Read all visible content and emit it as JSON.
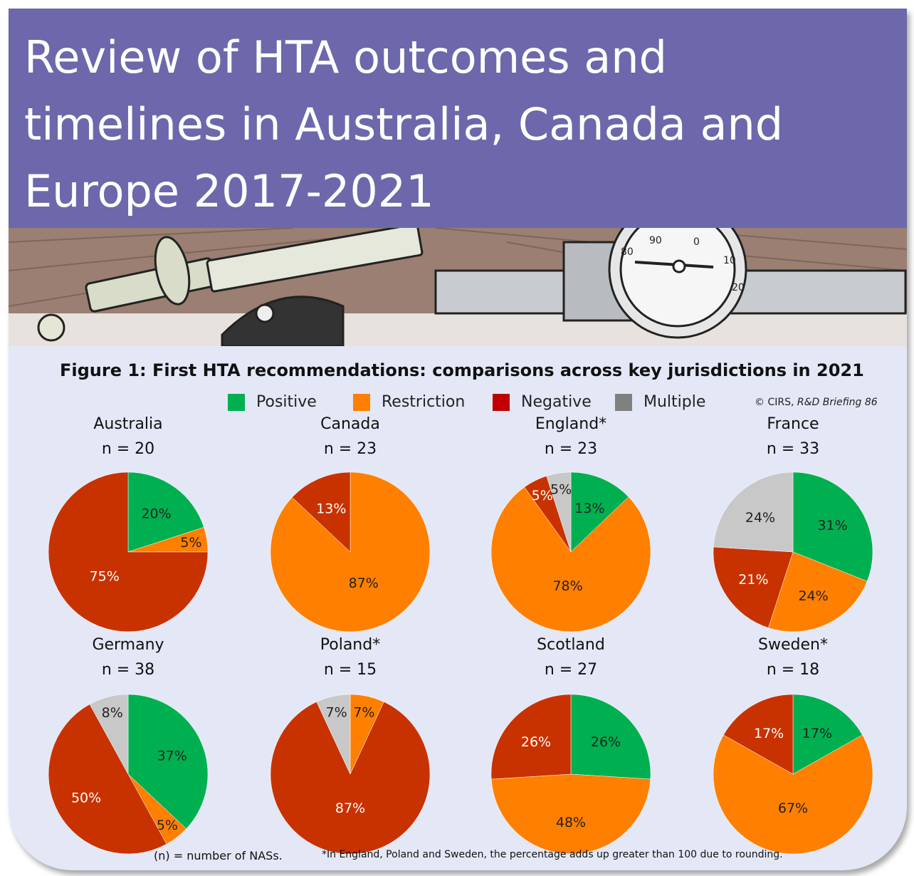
{
  "banner": {
    "title_lines": [
      "Review of HTA outcomes and",
      "timelines in Australia, Canada and",
      "Europe 2017-2021"
    ]
  },
  "figure": {
    "title": "Figure 1: First HTA recommendations: comparisons across key jurisdictions in 2021",
    "credit_prefix": "© CIRS, ",
    "credit_italic": "R&D Briefing 86"
  },
  "legend": [
    {
      "label": "Positive",
      "color": "#00b050"
    },
    {
      "label": "Restriction",
      "color": "#ff7f00"
    },
    {
      "label": "Negative",
      "color": "#c00000"
    },
    {
      "label": "Multiple",
      "color": "#808080"
    }
  ],
  "footer": {
    "left": "(n) = number of NASs.",
    "right": "*In England, Poland and Sweden, the percentage adds up greater than 100 due to rounding."
  },
  "chart_data": [
    {
      "type": "pie",
      "title": "Australia",
      "n_label": "n = 20",
      "slices": [
        {
          "category": "Positive",
          "value": 20,
          "label": "20%",
          "color": "#00b050"
        },
        {
          "category": "Restriction",
          "value": 5,
          "label": "5%",
          "color": "#ff7f00"
        },
        {
          "category": "Negative",
          "value": 75,
          "label": "75%",
          "color": "#c83200"
        }
      ]
    },
    {
      "type": "pie",
      "title": "Canada",
      "n_label": "n = 23",
      "slices": [
        {
          "category": "Restriction",
          "value": 87,
          "label": "87%",
          "color": "#ff7f00"
        },
        {
          "category": "Negative",
          "value": 13,
          "label": "13%",
          "color": "#c83200"
        }
      ]
    },
    {
      "type": "pie",
      "title": "England*",
      "n_label": "n = 23",
      "slices": [
        {
          "category": "Positive",
          "value": 13,
          "label": "13%",
          "color": "#00b050"
        },
        {
          "category": "Restriction",
          "value": 78,
          "label": "78%",
          "color": "#ff7f00"
        },
        {
          "category": "Negative",
          "value": 5,
          "label": "5%",
          "color": "#c83200"
        },
        {
          "category": "Multiple",
          "value": 5,
          "label": "5%",
          "color": "#c8c8c8"
        }
      ]
    },
    {
      "type": "pie",
      "title": "France",
      "n_label": "n = 33",
      "slices": [
        {
          "category": "Positive",
          "value": 31,
          "label": "31%",
          "color": "#00b050"
        },
        {
          "category": "Restriction",
          "value": 24,
          "label": "24%",
          "color": "#ff7f00"
        },
        {
          "category": "Negative",
          "value": 21,
          "label": "21%",
          "color": "#c83200"
        },
        {
          "category": "Multiple",
          "value": 24,
          "label": "24%",
          "color": "#c8c8c8"
        }
      ]
    },
    {
      "type": "pie",
      "title": "Germany",
      "n_label": "n = 38",
      "slices": [
        {
          "category": "Positive",
          "value": 37,
          "label": "37%",
          "color": "#00b050"
        },
        {
          "category": "Restriction",
          "value": 5,
          "label": "5%",
          "color": "#ff7f00"
        },
        {
          "category": "Negative",
          "value": 50,
          "label": "50%",
          "color": "#c83200"
        },
        {
          "category": "Multiple",
          "value": 8,
          "label": "8%",
          "color": "#c8c8c8"
        }
      ]
    },
    {
      "type": "pie",
      "title": "Poland*",
      "n_label": "n = 15",
      "slices": [
        {
          "category": "Restriction",
          "value": 7,
          "label": "7%",
          "color": "#ff7f00"
        },
        {
          "category": "Negative",
          "value": 87,
          "label": "87%",
          "color": "#c83200"
        },
        {
          "category": "Multiple",
          "value": 7,
          "label": "7%",
          "color": "#c8c8c8"
        }
      ]
    },
    {
      "type": "pie",
      "title": "Scotland",
      "n_label": "n = 27",
      "slices": [
        {
          "category": "Positive",
          "value": 26,
          "label": "26%",
          "color": "#00b050"
        },
        {
          "category": "Restriction",
          "value": 48,
          "label": "48%",
          "color": "#ff7f00"
        },
        {
          "category": "Negative",
          "value": 26,
          "label": "26%",
          "color": "#c83200"
        }
      ]
    },
    {
      "type": "pie",
      "title": "Sweden*",
      "n_label": "n = 18",
      "slices": [
        {
          "category": "Positive",
          "value": 17,
          "label": "17%",
          "color": "#00b050"
        },
        {
          "category": "Restriction",
          "value": 67,
          "label": "67%",
          "color": "#ff7f00"
        },
        {
          "category": "Negative",
          "value": 17,
          "label": "17%",
          "color": "#c83200"
        }
      ]
    }
  ]
}
